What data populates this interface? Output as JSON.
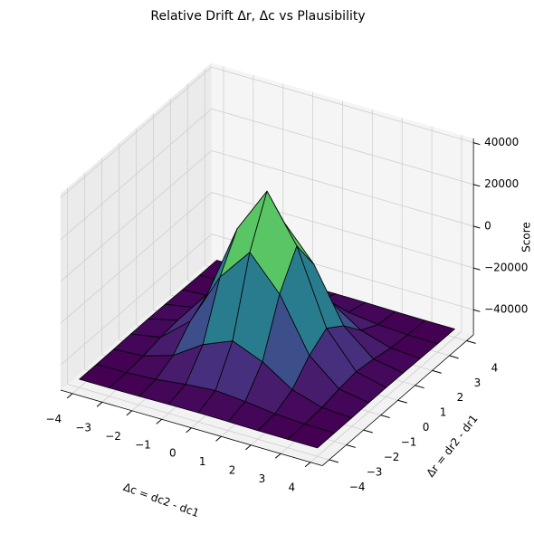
{
  "chart_data": {
    "type": "surface3d",
    "title": "Relative Drift Δr, Δc vs Plausibility",
    "x_label": "Δc = dc2 - dc1",
    "y_label": "Δr = dr2 - dr1",
    "z_label": "Score",
    "colormap": "viridis",
    "edge_color": "#000000",
    "x": [
      -4,
      -3,
      -2,
      -1,
      0,
      1,
      2,
      3,
      4
    ],
    "y": [
      -4,
      -3,
      -2,
      -1,
      0,
      1,
      2,
      3,
      4
    ],
    "z": [
      [
        -48000,
        -48000,
        -47900,
        -47700,
        -47600,
        -47700,
        -47900,
        -48000,
        -48000
      ],
      [
        -48000,
        -47800,
        -47000,
        -45200,
        -44100,
        -45200,
        -47000,
        -47800,
        -48000
      ],
      [
        -47900,
        -47000,
        -42600,
        -33300,
        -27400,
        -33300,
        -42600,
        -47000,
        -47900
      ],
      [
        -47700,
        -45200,
        -33300,
        -8000,
        7900,
        -8000,
        -33300,
        -45200,
        -47700
      ],
      [
        -47600,
        -44100,
        -27400,
        7900,
        30000,
        7900,
        -27400,
        -44100,
        -47600
      ],
      [
        -47700,
        -45200,
        -33300,
        -8000,
        7900,
        -8000,
        -33300,
        -45200,
        -47700
      ],
      [
        -47900,
        -47000,
        -42600,
        -33300,
        -27400,
        -33300,
        -42600,
        -47000,
        -47900
      ],
      [
        -48000,
        -47800,
        -47000,
        -45200,
        -44100,
        -45200,
        -47000,
        -47800,
        -48000
      ],
      [
        -48000,
        -48000,
        -47900,
        -47700,
        -47600,
        -47700,
        -47900,
        -48000,
        -48000
      ]
    ],
    "xlim": [
      -4.4,
      4.4
    ],
    "ylim": [
      -4.4,
      4.4
    ],
    "zlim": [
      -52000,
      42000
    ],
    "xticks": [
      {
        "value": -4,
        "label": "−4"
      },
      {
        "value": -3,
        "label": "−3"
      },
      {
        "value": -2,
        "label": "−2"
      },
      {
        "value": -1,
        "label": "−1"
      },
      0,
      1,
      2,
      3,
      4
    ],
    "yticks": [
      {
        "value": -4,
        "label": "−4"
      },
      {
        "value": -3,
        "label": "−3"
      },
      {
        "value": -2,
        "label": "−2"
      },
      {
        "value": -1,
        "label": "−1"
      },
      0,
      1,
      2,
      3,
      4
    ],
    "zticks": [
      {
        "value": -40000,
        "label": "−40000"
      },
      {
        "value": -20000,
        "label": "−20000"
      },
      0,
      20000,
      40000
    ],
    "grid": true
  }
}
